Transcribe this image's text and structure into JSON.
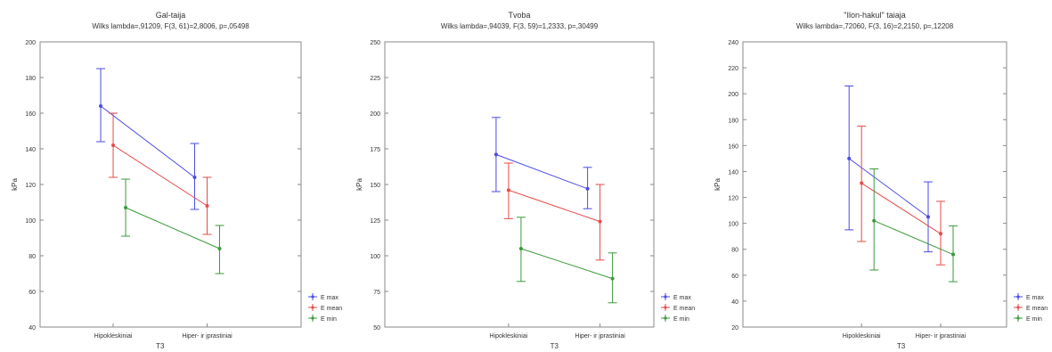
{
  "chart_data": [
    {
      "type": "line",
      "title": "Gal-taija",
      "subtitle": "Wilks lambda=,91209, F(3, 61)=2,8006, p=,05498",
      "xlabel": "T3",
      "ylabel": "kPa",
      "categories": [
        "Hipoklėskiniai",
        "Hiper- ir įprastiniai"
      ],
      "ylim": [
        40,
        200
      ],
      "yticks": [
        40,
        60,
        80,
        100,
        120,
        140,
        160,
        180,
        200
      ],
      "grid": false,
      "legend_position": "bottom-right",
      "series": [
        {
          "name": "E max",
          "color": "#4a4ae8",
          "values": [
            164,
            124
          ],
          "ci_low": [
            144,
            106
          ],
          "ci_high": [
            185,
            143
          ]
        },
        {
          "name": "E mean",
          "color": "#e84a4a",
          "values": [
            142,
            108
          ],
          "ci_low": [
            124,
            92
          ],
          "ci_high": [
            160,
            124
          ]
        },
        {
          "name": "E min",
          "color": "#3a9a3a",
          "values": [
            107,
            84
          ],
          "ci_low": [
            91,
            70
          ],
          "ci_high": [
            123,
            97
          ]
        }
      ]
    },
    {
      "type": "line",
      "title": "Tvoba",
      "subtitle": "Wilks lambda=,94039, F(3, 59)=1,2333, p=,30499",
      "xlabel": "T3",
      "ylabel": "kPa",
      "categories": [
        "Hipoklėskiniai",
        "Hiper- ir įprastiniai"
      ],
      "ylim": [
        50,
        250
      ],
      "yticks": [
        50,
        75,
        100,
        125,
        150,
        175,
        200,
        225,
        250
      ],
      "grid": false,
      "legend_position": "bottom-right",
      "series": [
        {
          "name": "E max",
          "color": "#4a4ae8",
          "values": [
            171,
            147
          ],
          "ci_low": [
            145,
            133
          ],
          "ci_high": [
            197,
            162
          ]
        },
        {
          "name": "E mean",
          "color": "#e84a4a",
          "values": [
            146,
            124
          ],
          "ci_low": [
            126,
            97
          ],
          "ci_high": [
            165,
            150
          ]
        },
        {
          "name": "E min",
          "color": "#3a9a3a",
          "values": [
            105,
            84
          ],
          "ci_low": [
            82,
            67
          ],
          "ci_high": [
            127,
            102
          ]
        }
      ]
    },
    {
      "type": "line",
      "title": "\"Ilon-hakul\" taiaja",
      "subtitle": "Wilks lambda=,72060, F(3, 16)=2,2150, p=,12208",
      "xlabel": "T3",
      "ylabel": "kPa",
      "categories": [
        "Hipoklėskiniai",
        "Hiper- ir įprastiniai"
      ],
      "ylim": [
        20,
        240
      ],
      "yticks": [
        20,
        40,
        60,
        80,
        100,
        120,
        140,
        160,
        180,
        200,
        220,
        240
      ],
      "grid": false,
      "legend_position": "bottom-right",
      "series": [
        {
          "name": "E max",
          "color": "#4a4ae8",
          "values": [
            150,
            105
          ],
          "ci_low": [
            95,
            78
          ],
          "ci_high": [
            206,
            132
          ]
        },
        {
          "name": "E mean",
          "color": "#e84a4a",
          "values": [
            131,
            92
          ],
          "ci_low": [
            86,
            68
          ],
          "ci_high": [
            175,
            117
          ]
        },
        {
          "name": "E min",
          "color": "#3a9a3a",
          "values": [
            102,
            76
          ],
          "ci_low": [
            64,
            55
          ],
          "ci_high": [
            142,
            98
          ]
        }
      ]
    }
  ]
}
